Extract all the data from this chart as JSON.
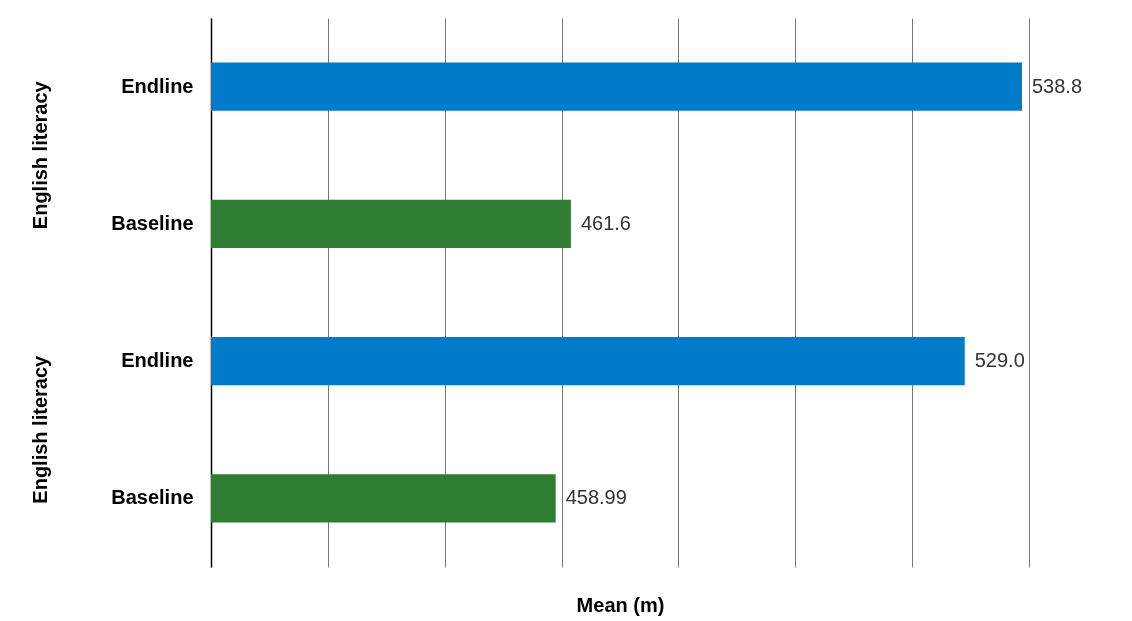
{
  "chart_data": {
    "type": "bar",
    "orientation": "horizontal",
    "categories": [
      "Endline",
      "Baseline",
      "Endline",
      "Baseline"
    ],
    "values": [
      538.8,
      461.6,
      529.0,
      458.99
    ],
    "value_labels": [
      "538.8",
      "461.6",
      "529.0",
      "458.99"
    ],
    "colors": [
      "#007ac9",
      "#2e7d32",
      "#007ac9",
      "#2e7d32"
    ],
    "xlabel": "Mean (m)",
    "xlim": [
      400,
      540
    ],
    "xticks": [
      400,
      420,
      440,
      460,
      480,
      500,
      520,
      540
    ],
    "tick_labels": "y",
    "grid": "x",
    "annotations": [
      "English literacy",
      "English literacy"
    ]
  }
}
